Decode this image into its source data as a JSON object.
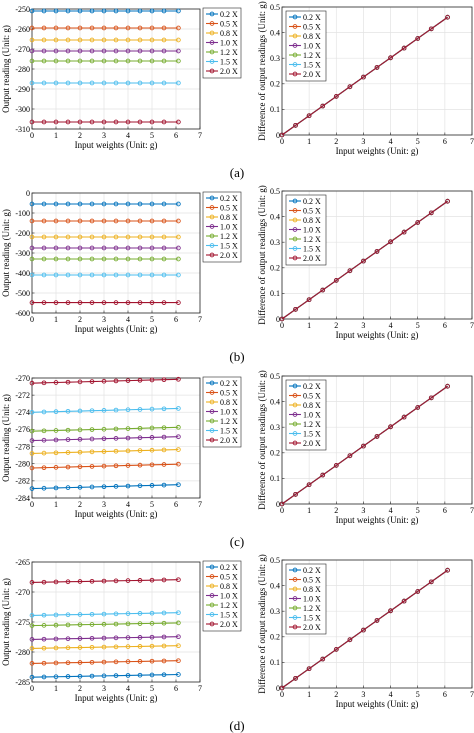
{
  "legend_labels": [
    "0.2 X",
    "0.5 X",
    "0.8 X",
    "1.0 X",
    "1.2 X",
    "1.5 X",
    "2.0 X"
  ],
  "series_colors": [
    "#0072BD",
    "#D95319",
    "#EDB120",
    "#7E2F8E",
    "#77AC30",
    "#4DBEEE",
    "#A2142F"
  ],
  "panels": [
    {
      "caption": "(a)",
      "chart_data": [
        {
          "type": "line",
          "xlabel": "Input weights (Unit: g)",
          "ylabel": "Output reading (Unit: g)",
          "xlim": [
            0,
            7
          ],
          "ylim": [
            -310,
            -250
          ],
          "xticks": [
            0,
            1,
            2,
            3,
            4,
            5,
            6,
            7
          ],
          "yticks": [
            -310,
            -300,
            -290,
            -280,
            -270,
            -260,
            -250
          ],
          "grid": true,
          "legend": "right, outside plot",
          "x": [
            0,
            0.5,
            1,
            1.5,
            2,
            2.5,
            3,
            3.5,
            4,
            4.5,
            5,
            5.5,
            6.1
          ],
          "series": [
            {
              "name": "0.2 X",
              "y_start": -251,
              "y_end": -251
            },
            {
              "name": "0.5 X",
              "y_start": -259.5,
              "y_end": -259.5
            },
            {
              "name": "0.8 X",
              "y_start": -265.5,
              "y_end": -265.5
            },
            {
              "name": "1.0 X",
              "y_start": -271,
              "y_end": -271
            },
            {
              "name": "1.2 X",
              "y_start": -276,
              "y_end": -276
            },
            {
              "name": "1.5 X",
              "y_start": -287,
              "y_end": -287
            },
            {
              "name": "2.0 X",
              "y_start": -306.5,
              "y_end": -306.5
            }
          ]
        },
        {
          "type": "line",
          "xlabel": "Input weights (Unit: g)",
          "ylabel": "Difference of output readings (Unit: g)",
          "xlim": [
            0,
            7
          ],
          "ylim": [
            0,
            0.5
          ],
          "xticks": [
            0,
            1,
            2,
            3,
            4,
            5,
            6,
            7
          ],
          "yticks": [
            0,
            0.1,
            0.2,
            0.3,
            0.4,
            0.5
          ],
          "grid": true,
          "legend": "top-left",
          "x": [
            0,
            0.5,
            1,
            1.5,
            2,
            2.5,
            3,
            3.5,
            4,
            4.5,
            5,
            5.5,
            6.1
          ],
          "series": [
            {
              "name": "0.2 X",
              "y_start": 0,
              "y_end": 0.46
            },
            {
              "name": "0.5 X",
              "y_start": 0,
              "y_end": 0.46
            },
            {
              "name": "0.8 X",
              "y_start": 0,
              "y_end": 0.46
            },
            {
              "name": "1.0 X",
              "y_start": 0,
              "y_end": 0.46
            },
            {
              "name": "1.2 X",
              "y_start": 0,
              "y_end": 0.46
            },
            {
              "name": "1.5 X",
              "y_start": 0,
              "y_end": 0.46
            },
            {
              "name": "2.0 X",
              "y_start": 0,
              "y_end": 0.46
            }
          ]
        }
      ]
    },
    {
      "caption": "(b)",
      "chart_data": [
        {
          "type": "line",
          "xlabel": "Input weights (Unit: g)",
          "ylabel": "Output reading (Unit: g)",
          "xlim": [
            0,
            7
          ],
          "ylim": [
            -600,
            0
          ],
          "xticks": [
            0,
            1,
            2,
            3,
            4,
            5,
            6,
            7
          ],
          "yticks": [
            -600,
            -500,
            -400,
            -300,
            -200,
            -100,
            0
          ],
          "grid": true,
          "legend": "right, outside plot",
          "x": [
            0,
            0.5,
            1,
            1.5,
            2,
            2.5,
            3,
            3.5,
            4,
            4.5,
            5,
            5.5,
            6.1
          ],
          "series": [
            {
              "name": "0.2 X",
              "y_start": -55,
              "y_end": -55
            },
            {
              "name": "0.5 X",
              "y_start": -140,
              "y_end": -140
            },
            {
              "name": "0.8 X",
              "y_start": -220,
              "y_end": -220
            },
            {
              "name": "1.0 X",
              "y_start": -275,
              "y_end": -275
            },
            {
              "name": "1.2 X",
              "y_start": -330,
              "y_end": -330
            },
            {
              "name": "1.5 X",
              "y_start": -410,
              "y_end": -410
            },
            {
              "name": "2.0 X",
              "y_start": -548,
              "y_end": -548
            }
          ]
        },
        {
          "type": "line",
          "xlabel": "Input weights (Unit: g)",
          "ylabel": "Difference of output readings (Unit: g)",
          "xlim": [
            0,
            7
          ],
          "ylim": [
            0,
            0.5
          ],
          "xticks": [
            0,
            1,
            2,
            3,
            4,
            5,
            6,
            7
          ],
          "yticks": [
            0,
            0.1,
            0.2,
            0.3,
            0.4,
            0.5
          ],
          "grid": true,
          "legend": "top-left",
          "x": [
            0,
            0.5,
            1,
            1.5,
            2,
            2.5,
            3,
            3.5,
            4,
            4.5,
            5,
            5.5,
            6.1
          ],
          "series": [
            {
              "name": "0.2 X",
              "y_start": 0,
              "y_end": 0.46
            },
            {
              "name": "0.5 X",
              "y_start": 0,
              "y_end": 0.46
            },
            {
              "name": "0.8 X",
              "y_start": 0,
              "y_end": 0.46
            },
            {
              "name": "1.0 X",
              "y_start": 0,
              "y_end": 0.46
            },
            {
              "name": "1.2 X",
              "y_start": 0,
              "y_end": 0.46
            },
            {
              "name": "1.5 X",
              "y_start": 0,
              "y_end": 0.46
            },
            {
              "name": "2.0 X",
              "y_start": 0,
              "y_end": 0.46
            }
          ]
        }
      ]
    },
    {
      "caption": "(c)",
      "chart_data": [
        {
          "type": "line",
          "xlabel": "Input weights (Unit: g)",
          "ylabel": "Output reading (Unit: g)",
          "xlim": [
            0,
            7
          ],
          "ylim": [
            -284,
            -270
          ],
          "xticks": [
            0,
            1,
            2,
            3,
            4,
            5,
            6,
            7
          ],
          "yticks": [
            -284,
            -282,
            -280,
            -278,
            -276,
            -274,
            -272,
            -270
          ],
          "grid": true,
          "legend": "right, outside plot",
          "x": [
            0,
            0.5,
            1,
            1.5,
            2,
            2.5,
            3,
            3.5,
            4,
            4.5,
            5,
            5.5,
            6.1
          ],
          "series": [
            {
              "name": "0.2 X",
              "y_start": -282.9,
              "y_end": -282.45
            },
            {
              "name": "0.5 X",
              "y_start": -280.5,
              "y_end": -280.05
            },
            {
              "name": "0.8 X",
              "y_start": -278.8,
              "y_end": -278.35
            },
            {
              "name": "1.0 X",
              "y_start": -277.3,
              "y_end": -276.85
            },
            {
              "name": "1.2 X",
              "y_start": -276.2,
              "y_end": -275.75
            },
            {
              "name": "1.5 X",
              "y_start": -274.0,
              "y_end": -273.55
            },
            {
              "name": "2.0 X",
              "y_start": -270.6,
              "y_end": -270.15
            }
          ]
        },
        {
          "type": "line",
          "xlabel": "Input weights (Unit: g)",
          "ylabel": "Difference of output readings (Unit: g)",
          "xlim": [
            0,
            7
          ],
          "ylim": [
            0,
            0.5
          ],
          "xticks": [
            0,
            1,
            2,
            3,
            4,
            5,
            6,
            7
          ],
          "yticks": [
            0,
            0.1,
            0.2,
            0.3,
            0.4,
            0.5
          ],
          "grid": true,
          "legend": "top-left",
          "x": [
            0,
            0.5,
            1,
            1.5,
            2,
            2.5,
            3,
            3.5,
            4,
            4.5,
            5,
            5.5,
            6.1
          ],
          "series": [
            {
              "name": "0.2 X",
              "y_start": 0,
              "y_end": 0.46
            },
            {
              "name": "0.5 X",
              "y_start": 0,
              "y_end": 0.46
            },
            {
              "name": "0.8 X",
              "y_start": 0,
              "y_end": 0.46
            },
            {
              "name": "1.0 X",
              "y_start": 0,
              "y_end": 0.46
            },
            {
              "name": "1.2 X",
              "y_start": 0,
              "y_end": 0.46
            },
            {
              "name": "1.5 X",
              "y_start": 0,
              "y_end": 0.46
            },
            {
              "name": "2.0 X",
              "y_start": 0,
              "y_end": 0.46
            }
          ]
        }
      ]
    },
    {
      "caption": "(d)",
      "chart_data": [
        {
          "type": "line",
          "xlabel": "Input weights (Unit: g)",
          "ylabel": "Output reading (Unit: g)",
          "xlim": [
            0,
            7
          ],
          "ylim": [
            -285,
            -265
          ],
          "xticks": [
            0,
            1,
            2,
            3,
            4,
            5,
            6,
            7
          ],
          "yticks": [
            -285,
            -280,
            -275,
            -270,
            -265
          ],
          "grid": true,
          "legend": "right, outside plot",
          "x": [
            0,
            0.5,
            1,
            1.5,
            2,
            2.5,
            3,
            3.5,
            4,
            4.5,
            5,
            5.5,
            6.1
          ],
          "series": [
            {
              "name": "0.2 X",
              "y_start": -284.2,
              "y_end": -283.75
            },
            {
              "name": "0.5 X",
              "y_start": -281.9,
              "y_end": -281.45
            },
            {
              "name": "0.8 X",
              "y_start": -279.4,
              "y_end": -278.95
            },
            {
              "name": "1.0 X",
              "y_start": -277.9,
              "y_end": -277.45
            },
            {
              "name": "1.2 X",
              "y_start": -275.6,
              "y_end": -275.15
            },
            {
              "name": "1.5 X",
              "y_start": -273.9,
              "y_end": -273.45
            },
            {
              "name": "2.0 X",
              "y_start": -268.4,
              "y_end": -267.95
            }
          ]
        },
        {
          "type": "line",
          "xlabel": "Input weights (Unit: g)",
          "ylabel": "Difference of output readings (Unit: g)",
          "xlim": [
            0,
            7
          ],
          "ylim": [
            0,
            0.5
          ],
          "xticks": [
            0,
            1,
            2,
            3,
            4,
            5,
            6,
            7
          ],
          "yticks": [
            0,
            0.1,
            0.2,
            0.3,
            0.4,
            0.5
          ],
          "grid": true,
          "legend": "top-left",
          "x": [
            0,
            0.5,
            1,
            1.5,
            2,
            2.5,
            3,
            3.5,
            4,
            4.5,
            5,
            5.5,
            6.1
          ],
          "series": [
            {
              "name": "0.2 X",
              "y_start": 0,
              "y_end": 0.46
            },
            {
              "name": "0.5 X",
              "y_start": 0,
              "y_end": 0.46
            },
            {
              "name": "0.8 X",
              "y_start": 0,
              "y_end": 0.46
            },
            {
              "name": "1.0 X",
              "y_start": 0,
              "y_end": 0.46
            },
            {
              "name": "1.2 X",
              "y_start": 0,
              "y_end": 0.46
            },
            {
              "name": "1.5 X",
              "y_start": 0,
              "y_end": 0.46
            },
            {
              "name": "2.0 X",
              "y_start": 0,
              "y_end": 0.46
            }
          ]
        }
      ]
    }
  ]
}
